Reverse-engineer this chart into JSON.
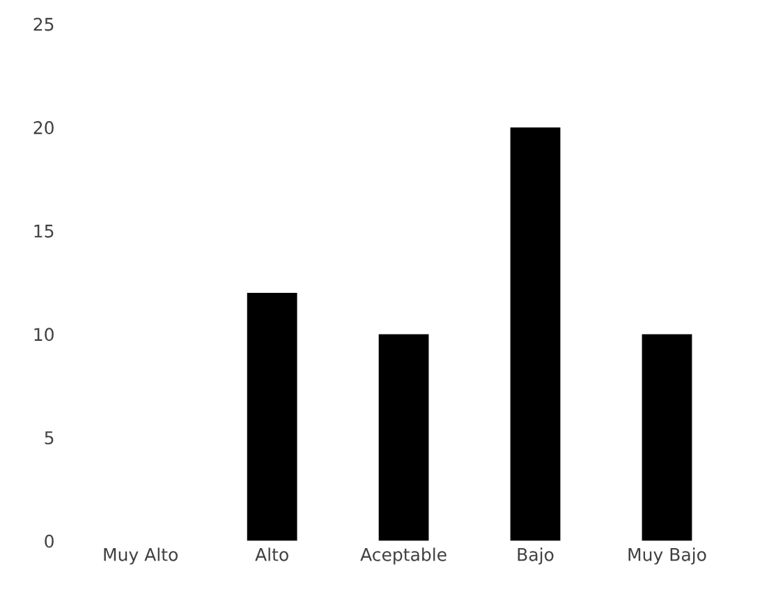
{
  "chart_data": {
    "type": "bar",
    "categories": [
      "Muy Alto",
      "Alto",
      "Aceptable",
      "Bajo",
      "Muy Bajo"
    ],
    "values": [
      0,
      12,
      10,
      20,
      10
    ],
    "color": "#000000",
    "ylim": [
      0,
      25
    ],
    "yticks": [
      0,
      5,
      10,
      15,
      20,
      25
    ],
    "grid": false
  }
}
